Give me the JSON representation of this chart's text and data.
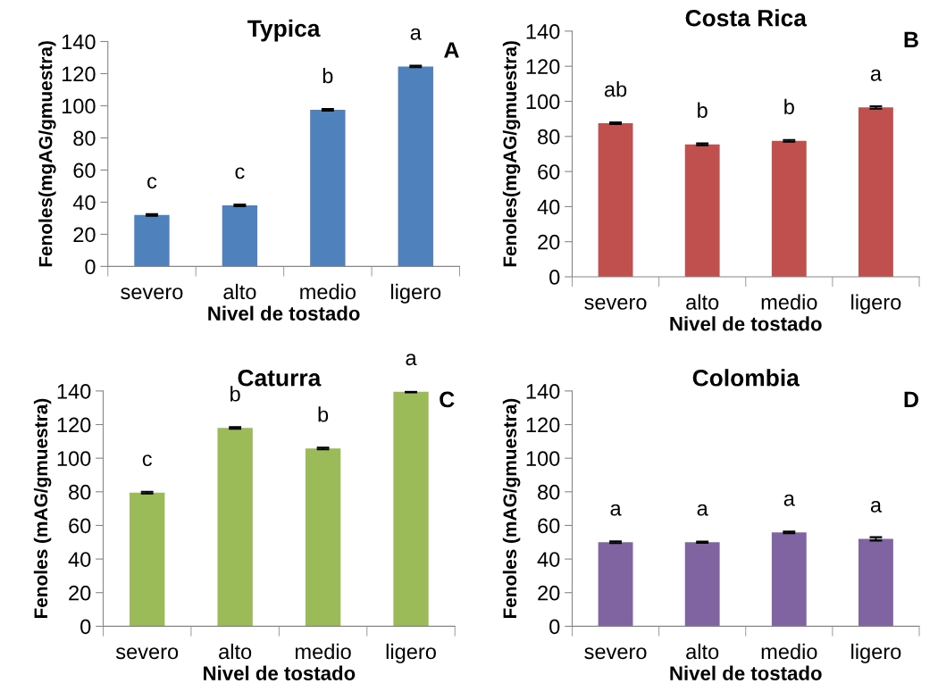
{
  "chart_data": [
    {
      "type": "bar",
      "title": "Typica",
      "xlabel": "Nivel de tostado",
      "ylabel": "Fenoles(mgAG/gmuestra)",
      "categories": [
        "severo",
        "alto",
        "medio",
        "ligero"
      ],
      "values": [
        32,
        38,
        97.5,
        124.5
      ],
      "errors": [
        0.5,
        0.5,
        0.5,
        0.5
      ],
      "color": "#4f81bd",
      "ylim": [
        0,
        140
      ],
      "yticks": [
        0,
        20,
        40,
        60,
        80,
        100,
        120,
        140
      ],
      "grid": false,
      "legend": false,
      "annotations": [
        "A",
        {
          "text": "c",
          "x": "severo",
          "y": 32
        },
        {
          "text": "c",
          "x": "alto",
          "y": 38
        },
        {
          "text": "b",
          "x": "medio",
          "y": 97.5
        },
        {
          "text": "a",
          "x": "ligero",
          "y": 124.5
        }
      ]
    },
    {
      "type": "bar",
      "title": "Costa Rica",
      "xlabel": "Nivel de tostado",
      "ylabel": "Fenoles(mgAG/gmuestra)",
      "categories": [
        "severo",
        "alto",
        "medio",
        "ligero"
      ],
      "values": [
        87.5,
        75.5,
        77.5,
        96.5
      ],
      "errors": [
        0.5,
        0.5,
        0.5,
        0.7
      ],
      "color": "#c0504d",
      "ylim": [
        0,
        140
      ],
      "yticks": [
        0,
        20,
        40,
        60,
        80,
        100,
        120,
        140
      ],
      "grid": false,
      "legend": false,
      "annotations": [
        "B",
        {
          "text": "ab",
          "x": "severo",
          "y": 87.5
        },
        {
          "text": "b",
          "x": "alto",
          "y": 75.5
        },
        {
          "text": "b",
          "x": "medio",
          "y": 77.5
        },
        {
          "text": "a",
          "x": "ligero",
          "y": 96.5
        }
      ]
    },
    {
      "type": "bar",
      "title": "Caturra",
      "xlabel": "Nivel de tostado",
      "ylabel": "Fenoles (mAG/gmuestra)",
      "categories": [
        "severo",
        "alto",
        "medio",
        "ligero"
      ],
      "values": [
        79.5,
        118,
        105.8,
        139.5
      ],
      "errors": [
        0.5,
        0.5,
        0.5,
        0.3
      ],
      "color": "#9bbb59",
      "ylim": [
        0,
        140
      ],
      "yticks": [
        0,
        20,
        40,
        60,
        80,
        100,
        120,
        140
      ],
      "grid": false,
      "legend": false,
      "annotations": [
        "C",
        {
          "text": "c",
          "x": "severo",
          "y": 79.5
        },
        {
          "text": "b",
          "x": "alto",
          "y": 118
        },
        {
          "text": "b",
          "x": "medio",
          "y": 105.8
        },
        {
          "text": "a",
          "x": "ligero",
          "y": 139.5
        }
      ]
    },
    {
      "type": "bar",
      "title": "Colombia",
      "xlabel": "Nivel de tostado",
      "ylabel": "Fenoles (mAG/gmuestra)",
      "categories": [
        "severo",
        "alto",
        "medio",
        "ligero"
      ],
      "values": [
        50,
        50,
        55.8,
        52
      ],
      "errors": [
        0.5,
        0.4,
        0.5,
        1
      ],
      "color": "#8064a2",
      "ylim": [
        0,
        140
      ],
      "yticks": [
        0,
        20,
        40,
        60,
        80,
        100,
        120,
        140
      ],
      "grid": false,
      "legend": false,
      "annotations": [
        "D",
        {
          "text": "a",
          "x": "severo",
          "y": 50
        },
        {
          "text": "a",
          "x": "alto",
          "y": 50
        },
        {
          "text": "a",
          "x": "medio",
          "y": 55.8
        },
        {
          "text": "a",
          "x": "ligero",
          "y": 52
        }
      ]
    }
  ]
}
